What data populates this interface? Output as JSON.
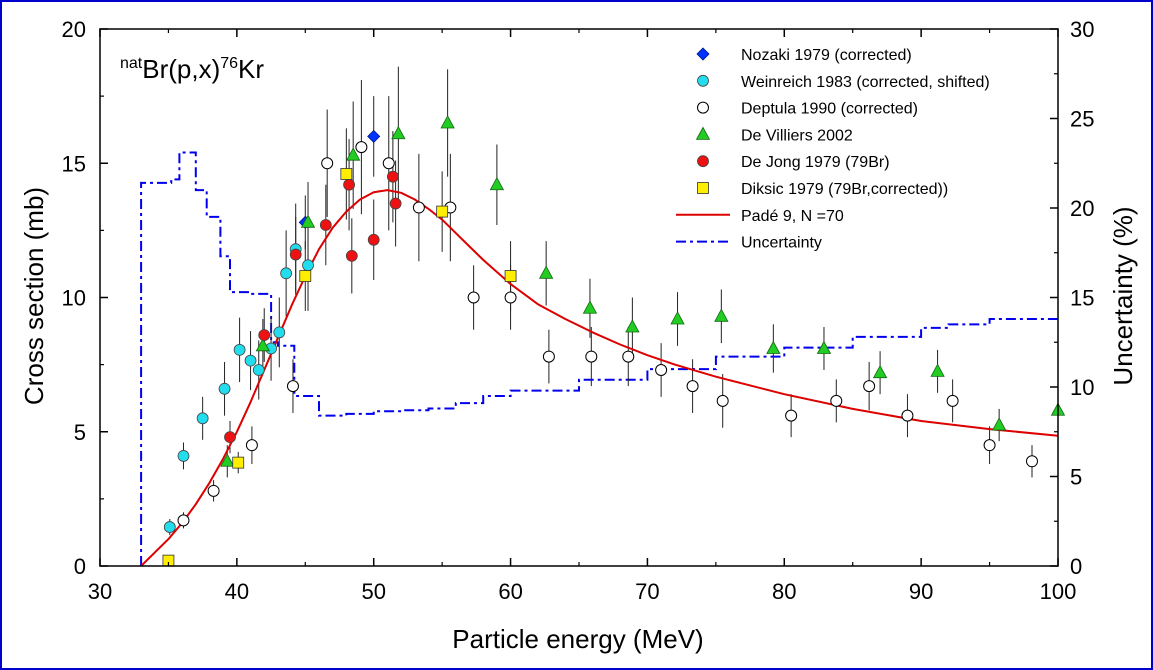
{
  "chart_data": {
    "type": "scatter",
    "title": "",
    "reaction": {
      "pre": "nat",
      "main1": "Br(p,x)",
      "mid": "76",
      "main2": "Kr"
    },
    "xlabel": "Particle energy (MeV)",
    "ylabel": "Cross section (mb)",
    "y2label": "Uncertainty (%)",
    "xlim": [
      30,
      100
    ],
    "ylim": [
      0,
      20
    ],
    "y2lim": [
      0,
      30
    ],
    "xticks": [
      30,
      40,
      50,
      60,
      70,
      80,
      90,
      100
    ],
    "yticks": [
      0,
      5,
      10,
      15,
      20
    ],
    "y2ticks": [
      0,
      5,
      10,
      15,
      20,
      25,
      30
    ],
    "grid": false,
    "legend_position": "top-right",
    "series": [
      {
        "name": "Nozaki 1979 (corrected)",
        "marker": "diamond",
        "color": "#0033ff",
        "points": [
          [
            45,
            12.8,
            1.0
          ],
          [
            50,
            16.0,
            1.5
          ]
        ]
      },
      {
        "name": "Weinreich 1983 (corrected, shifted)",
        "marker": "circle",
        "color": "#22ddee",
        "points": [
          [
            35.1,
            1.45,
            0.3
          ],
          [
            36.1,
            4.1,
            0.5
          ],
          [
            37.5,
            5.5,
            0.8
          ],
          [
            39.1,
            6.6,
            1.0
          ],
          [
            40.2,
            8.05,
            1.2
          ],
          [
            41.0,
            7.65,
            1.1
          ],
          [
            41.6,
            7.3,
            1.1
          ],
          [
            42.5,
            8.1,
            1.2
          ],
          [
            43.1,
            8.7,
            1.3
          ],
          [
            43.6,
            10.9,
            1.6
          ],
          [
            44.3,
            11.8,
            1.7
          ],
          [
            45.2,
            11.2,
            1.7
          ]
        ]
      },
      {
        "name": "Deptula 1990 (corrected)",
        "marker": "open-circle",
        "color": "#000000",
        "points": [
          [
            36.1,
            1.7,
            0.3
          ],
          [
            38.3,
            2.8,
            0.4
          ],
          [
            41.1,
            4.5,
            0.7
          ],
          [
            44.1,
            6.7,
            1.0
          ],
          [
            46.6,
            15.0,
            2.0
          ],
          [
            49.1,
            15.6,
            2.5
          ],
          [
            51.1,
            15.0,
            2.5
          ],
          [
            53.3,
            13.35,
            2.0
          ],
          [
            55.6,
            13.35,
            2.0
          ],
          [
            57.3,
            10.0,
            1.2
          ],
          [
            60.0,
            10.0,
            1.2
          ],
          [
            62.8,
            7.8,
            1.0
          ],
          [
            65.9,
            7.8,
            1.1
          ],
          [
            68.6,
            7.8,
            1.1
          ],
          [
            71.0,
            7.3,
            1.0
          ],
          [
            73.3,
            6.7,
            1.0
          ],
          [
            75.5,
            6.15,
            1.0
          ],
          [
            80.5,
            5.6,
            0.8
          ],
          [
            83.8,
            6.15,
            0.8
          ],
          [
            86.2,
            6.7,
            0.9
          ],
          [
            89.0,
            5.6,
            0.8
          ],
          [
            92.3,
            6.15,
            0.8
          ],
          [
            95.0,
            4.5,
            0.7
          ],
          [
            98.1,
            3.9,
            0.6
          ]
        ]
      },
      {
        "name": "De Villiers 2002",
        "marker": "triangle",
        "color": "#22cc22",
        "points": [
          [
            39.3,
            3.9,
            0.6
          ],
          [
            41.9,
            8.2,
            1.0
          ],
          [
            45.2,
            12.8,
            1.5
          ],
          [
            48.5,
            15.3,
            2.0
          ],
          [
            51.8,
            16.1,
            2.5
          ],
          [
            55.4,
            16.5,
            2.0
          ],
          [
            59.0,
            14.2,
            1.5
          ],
          [
            62.6,
            10.9,
            1.2
          ],
          [
            65.8,
            9.6,
            1.1
          ],
          [
            68.9,
            8.9,
            1.1
          ],
          [
            72.2,
            9.2,
            1.0
          ],
          [
            75.4,
            9.3,
            1.0
          ],
          [
            79.2,
            8.1,
            0.9
          ],
          [
            82.9,
            8.1,
            0.8
          ],
          [
            87.0,
            7.2,
            0.8
          ],
          [
            91.2,
            7.25,
            0.8
          ],
          [
            95.7,
            5.25,
            0.6
          ],
          [
            100.0,
            5.8,
            0.6
          ]
        ]
      },
      {
        "name": "De Jong 1979 (79Br)",
        "marker": "filled-circle",
        "color": "#ee1111",
        "points": [
          [
            39.5,
            4.8,
            0.6
          ],
          [
            42.0,
            8.6,
            1.0
          ],
          [
            44.3,
            11.6,
            1.4
          ],
          [
            46.5,
            12.7,
            1.5
          ],
          [
            48.2,
            14.2,
            1.7
          ],
          [
            48.4,
            11.55,
            1.4
          ],
          [
            50.0,
            12.15,
            1.5
          ],
          [
            51.4,
            14.5,
            1.7
          ],
          [
            51.6,
            13.5,
            1.6
          ]
        ]
      },
      {
        "name": "Diksic 1979 (79Br,corrected))",
        "marker": "square",
        "color": "#ffee00",
        "points": [
          [
            35.0,
            0.2,
            0.05
          ],
          [
            40.1,
            3.85,
            0.4
          ],
          [
            45.0,
            10.8,
            1.3
          ],
          [
            48.0,
            14.6,
            1.7
          ],
          [
            55.0,
            13.2,
            1.5
          ],
          [
            60.0,
            10.8,
            1.3
          ]
        ]
      }
    ],
    "fit": {
      "name": "Padé 9, N =70",
      "color": "#dd0000",
      "points": [
        [
          33,
          0.0
        ],
        [
          34,
          0.5
        ],
        [
          35,
          1.0
        ],
        [
          36,
          1.6
        ],
        [
          37,
          2.3
        ],
        [
          38,
          3.1
        ],
        [
          39,
          4.0
        ],
        [
          40,
          5.0
        ],
        [
          41,
          6.1
        ],
        [
          42,
          7.3
        ],
        [
          43,
          8.5
        ],
        [
          44,
          9.7
        ],
        [
          45,
          10.8
        ],
        [
          46,
          11.8
        ],
        [
          47,
          12.6
        ],
        [
          48,
          13.2
        ],
        [
          49,
          13.65
        ],
        [
          50,
          13.92
        ],
        [
          51,
          14.0
        ],
        [
          52,
          13.9
        ],
        [
          53,
          13.65
        ],
        [
          54,
          13.3
        ],
        [
          55,
          12.9
        ],
        [
          56,
          12.4
        ],
        [
          57,
          11.9
        ],
        [
          58,
          11.4
        ],
        [
          60,
          10.5
        ],
        [
          62,
          9.75
        ],
        [
          64,
          9.2
        ],
        [
          66,
          8.7
        ],
        [
          68,
          8.25
        ],
        [
          70,
          7.85
        ],
        [
          72,
          7.5
        ],
        [
          75,
          7.05
        ],
        [
          80,
          6.4
        ],
        [
          85,
          5.85
        ],
        [
          90,
          5.4
        ],
        [
          95,
          5.1
        ],
        [
          100,
          4.85
        ]
      ]
    },
    "uncertainty": {
      "name": "Uncertainty",
      "color": "#0000ee",
      "axis": "right",
      "points": [
        [
          33.0,
          0.0
        ],
        [
          33.0,
          21.4
        ],
        [
          35.2,
          21.4
        ],
        [
          35.2,
          21.6
        ],
        [
          35.8,
          21.6
        ],
        [
          35.8,
          23.1
        ],
        [
          37.0,
          23.1
        ],
        [
          37.0,
          21.0
        ],
        [
          37.8,
          21.0
        ],
        [
          37.8,
          19.5
        ],
        [
          38.8,
          19.5
        ],
        [
          38.8,
          17.3
        ],
        [
          39.5,
          17.3
        ],
        [
          39.5,
          15.3
        ],
        [
          41.0,
          15.3
        ],
        [
          41.0,
          15.2
        ],
        [
          42.5,
          15.2
        ],
        [
          42.5,
          12.5
        ],
        [
          43.0,
          12.5
        ],
        [
          43.0,
          12.3
        ],
        [
          44.2,
          12.3
        ],
        [
          44.2,
          9.5
        ],
        [
          46.0,
          9.5
        ],
        [
          46.0,
          8.4
        ],
        [
          48.0,
          8.4
        ],
        [
          48.0,
          8.5
        ],
        [
          50.0,
          8.5
        ],
        [
          50.0,
          8.65
        ],
        [
          52.0,
          8.65
        ],
        [
          52.0,
          8.7
        ],
        [
          54.0,
          8.7
        ],
        [
          54.0,
          8.8
        ],
        [
          56.0,
          8.8
        ],
        [
          56.0,
          9.1
        ],
        [
          58.0,
          9.1
        ],
        [
          58.0,
          9.5
        ],
        [
          60.0,
          9.5
        ],
        [
          60.0,
          9.8
        ],
        [
          65.0,
          9.8
        ],
        [
          65.0,
          10.4
        ],
        [
          70.0,
          10.4
        ],
        [
          70.0,
          11.0
        ],
        [
          75.0,
          11.0
        ],
        [
          75.0,
          11.7
        ],
        [
          80.0,
          11.7
        ],
        [
          80.0,
          12.2
        ],
        [
          85.0,
          12.2
        ],
        [
          85.0,
          12.8
        ],
        [
          90.0,
          12.8
        ],
        [
          90.0,
          13.3
        ],
        [
          92.0,
          13.3
        ],
        [
          92.0,
          13.5
        ],
        [
          95.0,
          13.5
        ],
        [
          95.0,
          13.8
        ],
        [
          100.0,
          13.8
        ]
      ]
    }
  }
}
